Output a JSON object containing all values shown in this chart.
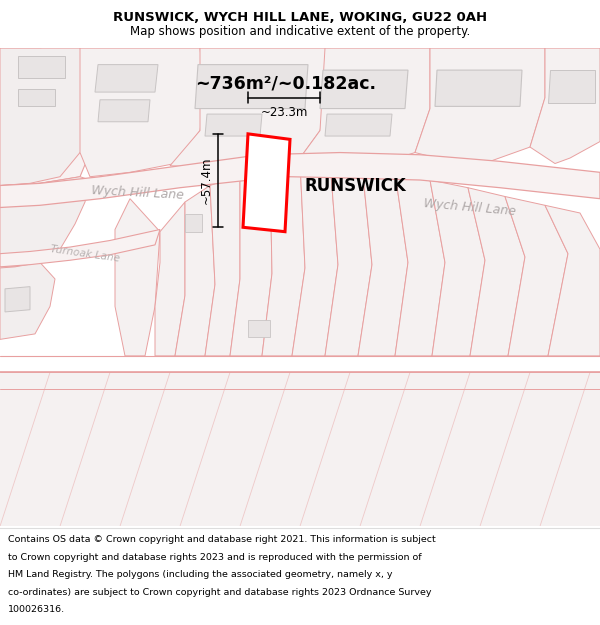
{
  "title": "RUNSWICK, WYCH HILL LANE, WOKING, GU22 0AH",
  "subtitle": "Map shows position and indicative extent of the property.",
  "footer_lines": [
    "Contains OS data © Crown copyright and database right 2021. This information is subject",
    "to Crown copyright and database rights 2023 and is reproduced with the permission of",
    "HM Land Registry. The polygons (including the associated geometry, namely x, y",
    "co-ordinates) are subject to Crown copyright and database rights 2023 Ordnance Survey",
    "100026316."
  ],
  "map_bg": "#faf7f7",
  "road_color": "#e8a0a0",
  "road_fill": "#f8f2f2",
  "building_fill": "#e8e4e4",
  "building_edge": "#c8c4c4",
  "property_label": "RUNSWICK",
  "dim_height": "~57.4m",
  "dim_width": "~23.3m",
  "area_label": "~736m²/~0.182ac.",
  "wych_hill_lane_label1": "Wych Hill Lane",
  "wych_hill_lane_label2": "Wych Hill Lane",
  "turnoak_lane_label": "Turnoak Lane",
  "title_fontsize": 9.5,
  "subtitle_fontsize": 8.5,
  "footer_fontsize": 6.8
}
